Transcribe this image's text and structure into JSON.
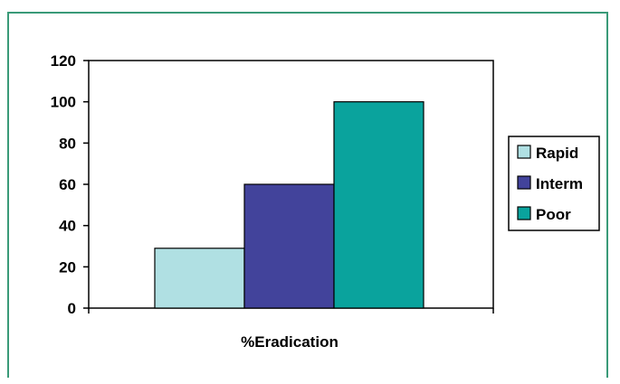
{
  "chart_data": {
    "type": "bar",
    "categories": [
      "%Eradication"
    ],
    "xlabel": "%Eradication",
    "ylabel": "",
    "ylim": [
      0,
      120
    ],
    "yticks": [
      0,
      20,
      40,
      60,
      80,
      100,
      120
    ],
    "grid": false,
    "legend_position": "right",
    "series": [
      {
        "name": "Rapid",
        "values": [
          29
        ],
        "color": "#b0e0e3"
      },
      {
        "name": "Interm",
        "values": [
          60
        ],
        "color": "#42439b"
      },
      {
        "name": "Poor",
        "values": [
          100
        ],
        "color": "#0aa39d"
      }
    ]
  }
}
